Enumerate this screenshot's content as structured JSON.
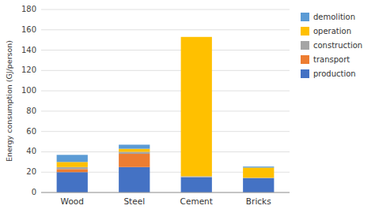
{
  "chart_data": {
    "type": "bar",
    "stacked": true,
    "categories": [
      "Wood",
      "Steel",
      "Cement",
      "Bricks"
    ],
    "series": [
      {
        "name": "production",
        "color": "#4472C4",
        "values": [
          20,
          25,
          15,
          14
        ]
      },
      {
        "name": "transport",
        "color": "#ED7D31",
        "values": [
          3,
          13,
          0,
          0
        ]
      },
      {
        "name": "construction",
        "color": "#A5A5A5",
        "values": [
          2,
          2,
          1,
          0.5
        ]
      },
      {
        "name": "operation",
        "color": "#FFC000",
        "values": [
          5,
          3,
          137,
          10
        ]
      },
      {
        "name": "demolition",
        "color": "#5B9BD5",
        "values": [
          7,
          4,
          0,
          1
        ]
      }
    ],
    "ylabel": "Energy consumption (GJ/person)",
    "ylim": [
      0,
      180
    ],
    "yticks": [
      0,
      20,
      40,
      60,
      80,
      100,
      120,
      140,
      160,
      180
    ],
    "grid": true,
    "legend": "right"
  }
}
